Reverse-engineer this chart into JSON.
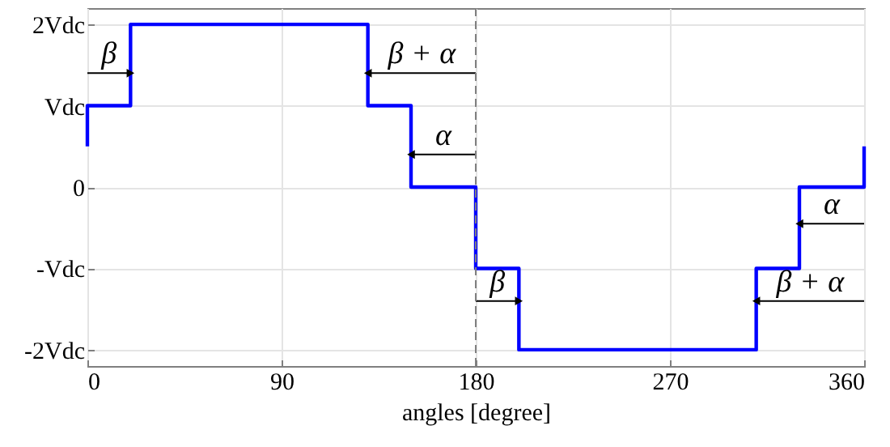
{
  "chart_data": {
    "type": "line",
    "xlabel": "angles [degree]",
    "xlim": [
      0,
      360
    ],
    "xticks": [
      0,
      90,
      180,
      270,
      360
    ],
    "ylim": [
      -2.2,
      2.2
    ],
    "yticks": [
      {
        "value": -2,
        "label": "-2Vdc"
      },
      {
        "value": -1,
        "label": "-Vdc"
      },
      0,
      {
        "value": 1,
        "label": "Vdc"
      },
      {
        "value": 2,
        "label": "2Vdc"
      }
    ],
    "grid": true,
    "marker": "none",
    "line_style": "solid",
    "series": [
      {
        "color": "#0000ff",
        "x": [
          0,
          0,
          20,
          20,
          130,
          130,
          150,
          150,
          180,
          180,
          200,
          200,
          310,
          310,
          330,
          330,
          360,
          360
        ],
        "values": [
          0.5,
          1,
          1,
          2,
          2,
          1,
          1,
          0,
          0,
          -1,
          -1,
          -2,
          -2,
          -1,
          -1,
          0,
          0,
          0.5
        ]
      },
      {
        "color": "#000000",
        "marker": "triangle",
        "x": [
          0,
          20
        ],
        "values": [
          1.4,
          1.4
        ]
      },
      {
        "color": "#000000",
        "marker": "triangle",
        "x": [
          180,
          130
        ],
        "values": [
          1.4,
          1.4
        ]
      },
      {
        "color": "#000000",
        "marker": "triangle",
        "x": [
          180,
          150
        ],
        "values": [
          0.4,
          0.4
        ]
      },
      {
        "color": "#000000",
        "marker": "triangle",
        "x": [
          180,
          200
        ],
        "values": [
          -1.4,
          -1.4
        ]
      },
      {
        "color": "#000000",
        "marker": "triangle",
        "x": [
          360,
          310
        ],
        "values": [
          -1.4,
          -1.4
        ]
      },
      {
        "color": "#000000",
        "marker": "triangle",
        "x": [
          360,
          330
        ],
        "values": [
          -0.45,
          -0.45
        ]
      }
    ],
    "ref_lines": [
      {
        "axis": "x",
        "value": 180,
        "color": "#808080",
        "line_style": "dashed"
      }
    ],
    "annotations": [
      "β",
      "β + α",
      "α",
      "β",
      "β + α",
      "α"
    ]
  }
}
